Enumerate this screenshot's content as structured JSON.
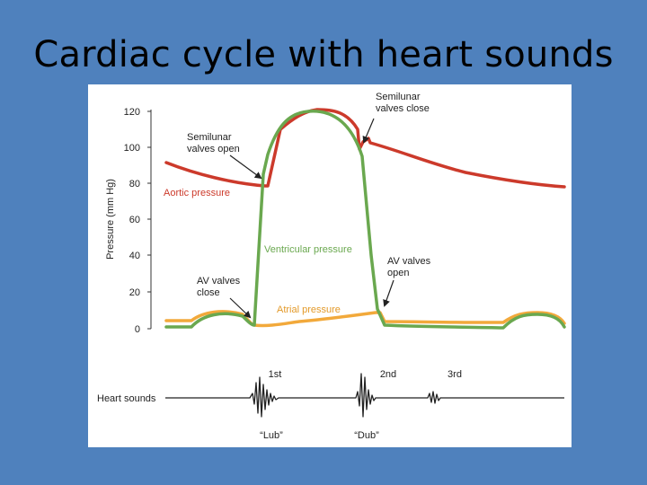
{
  "slide": {
    "title": "Cardiac cycle with heart sounds"
  },
  "figure": {
    "y_axis_label": "Pressure (mm Hg)",
    "y_ticks": [
      "120",
      "100",
      "80",
      "60",
      "40",
      "20",
      "0"
    ],
    "heart_sounds_label": "Heart sounds",
    "sound_names": {
      "first": "1st",
      "second": "2nd",
      "third": "3rd"
    },
    "sound_words": {
      "lub": "“Lub”",
      "dub": "“Dub”"
    },
    "curve_labels": {
      "aortic": "Aortic pressure",
      "ventricular": "Ventricular pressure",
      "atrial": "Atrial pressure"
    },
    "annotations": {
      "semilunar_open_1": "Semilunar",
      "semilunar_open_2": "valves open",
      "semilunar_close_1": "Semilunar",
      "semilunar_close_2": "valves close",
      "av_close_1": "AV valves",
      "av_close_2": "close",
      "av_open_1": "AV valves",
      "av_open_2": "open"
    },
    "colors": {
      "aortic": "#cc3a2b",
      "ventricular": "#6aa84f",
      "atrial": "#f2a93b",
      "annotation": "#333333",
      "axis": "#333333"
    }
  }
}
